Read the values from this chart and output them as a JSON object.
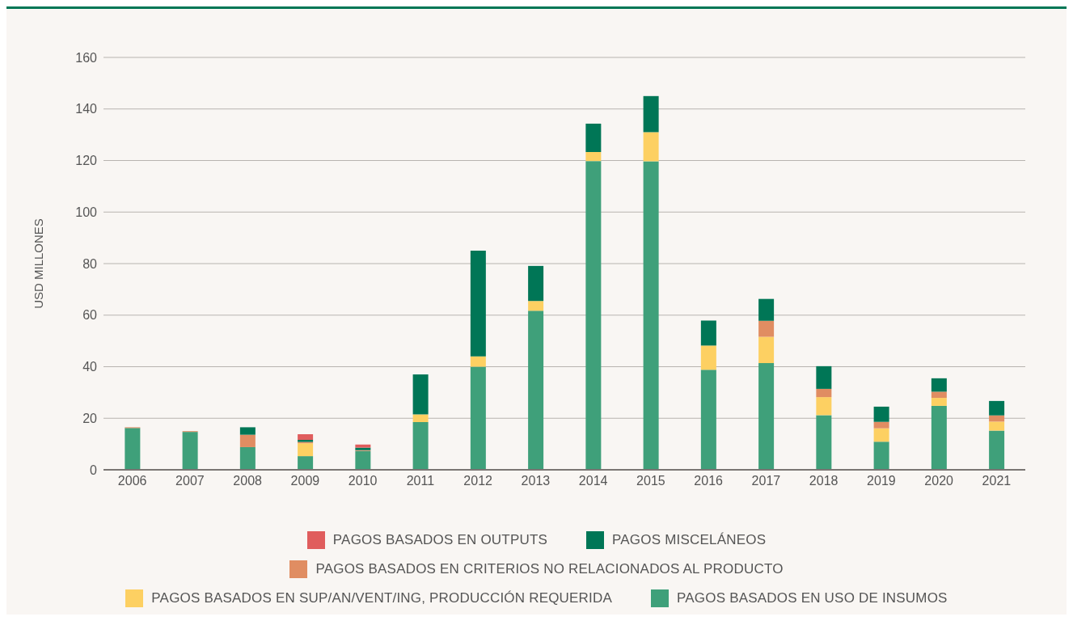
{
  "chart_data": {
    "type": "bar",
    "stacked": true,
    "ylabel": "USD MILLONES",
    "categories": [
      "2006",
      "2007",
      "2008",
      "2009",
      "2010",
      "2011",
      "2012",
      "2013",
      "2014",
      "2015",
      "2016",
      "2017",
      "2018",
      "2019",
      "2020",
      "2021"
    ],
    "series": [
      {
        "name": "PAGOS BASADOS EN USO DE INSUMOS",
        "color": "#3fa07a",
        "values": [
          16.2,
          14.7,
          8.8,
          5.3,
          7.3,
          18.5,
          40,
          61.7,
          119.8,
          119.7,
          38.8,
          41.4,
          21.2,
          10.9,
          24.8,
          15.2
        ]
      },
      {
        "name": "PAGOS BASADOS EN SUP/AN/VENT/ING, PRODUCCIÓN REQUERIDA",
        "color": "#fdd062",
        "values": [
          null,
          null,
          null,
          5,
          null,
          3,
          4,
          3.8,
          3.5,
          11.3,
          9.4,
          10.2,
          7,
          5.2,
          3.1,
          3.5
        ]
      },
      {
        "name": "PAGOS BASADOS EN CRITERIOS NO RELACIONADOS AL PRODUCTO",
        "color": "#e08d62",
        "values": [
          0.3,
          0.3,
          4.8,
          0.5,
          0.3,
          null,
          null,
          null,
          null,
          null,
          null,
          6.2,
          3.2,
          2.5,
          2.4,
          2.4
        ]
      },
      {
        "name": "PAGOS MISCELÁNEOS",
        "color": "#007656",
        "values": [
          null,
          null,
          2.9,
          0.8,
          1,
          15.5,
          41,
          13.6,
          11,
          14,
          9.7,
          8.5,
          8.8,
          5.9,
          5.2,
          5.6
        ]
      },
      {
        "name": "PAGOS BASADOS EN OUTPUTS",
        "color": "#e05d5d",
        "values": [
          null,
          null,
          null,
          2.2,
          1.2,
          null,
          null,
          null,
          null,
          null,
          null,
          null,
          null,
          null,
          null,
          null
        ]
      }
    ],
    "ylim": [
      0,
      160
    ],
    "yticks": [
      0,
      20,
      40,
      60,
      80,
      100,
      120,
      140,
      160
    ],
    "grid": "y",
    "legend": "bottom"
  }
}
